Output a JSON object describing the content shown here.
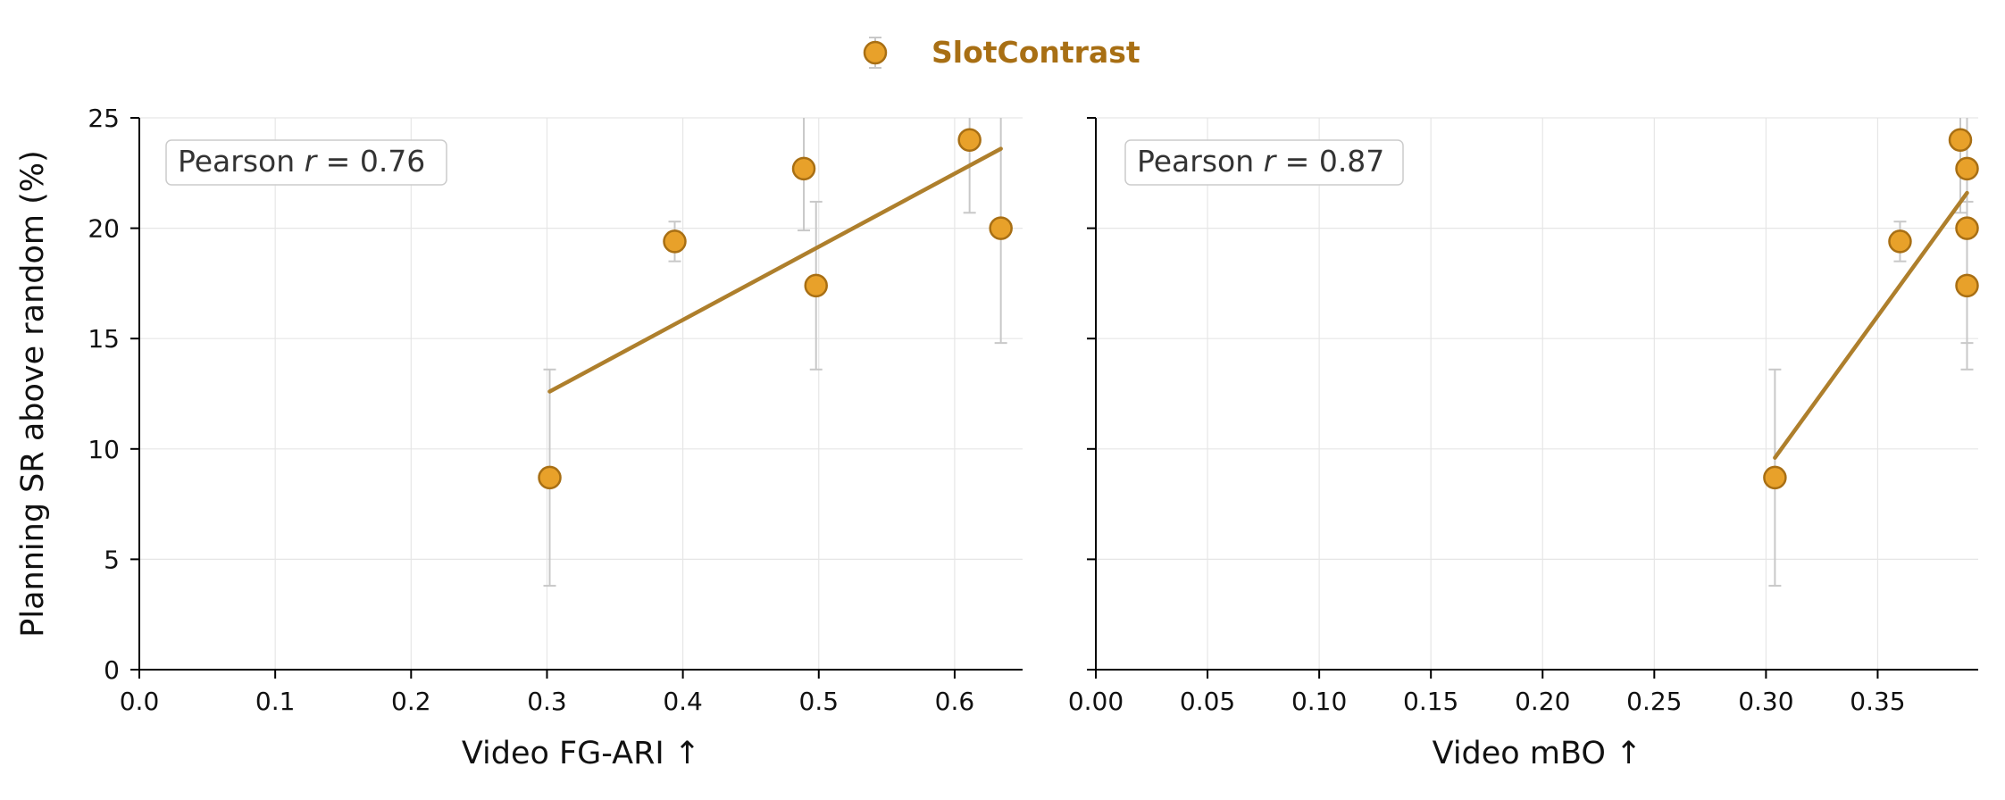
{
  "legend": {
    "label": "SlotContrast",
    "color": "#a86f14",
    "marker_fill": "#e8a12a",
    "marker_edge": "#a86f14"
  },
  "colors": {
    "fit_line": "#ae7f2c",
    "error_bar": "#c8c8c8",
    "grid": "#e6e6e6",
    "axis": "#000000",
    "annotation_text": "#333333",
    "annotation_border": "#cccccc"
  },
  "chart_data": [
    {
      "type": "scatter",
      "xlabel": "Video FG-ARI ↑",
      "ylabel": "Planning SR above random (%)",
      "xlim": [
        0.0,
        0.65
      ],
      "ylim": [
        0,
        25
      ],
      "xticks": [
        "0.0",
        "0.1",
        "0.2",
        "0.3",
        "0.4",
        "0.5",
        "0.6"
      ],
      "xtick_values": [
        0.0,
        0.1,
        0.2,
        0.3,
        0.4,
        0.5,
        0.6
      ],
      "yticks": [
        "0",
        "5",
        "10",
        "15",
        "20",
        "25"
      ],
      "ytick_values": [
        0,
        5,
        10,
        15,
        20,
        25
      ],
      "show_ytick_labels": true,
      "grid": true,
      "annotation": "Pearson r = 0.76",
      "series": [
        {
          "name": "SlotContrast",
          "points": [
            {
              "x": 0.302,
              "y": 8.7,
              "err_low": 3.8,
              "err_high": 13.6
            },
            {
              "x": 0.394,
              "y": 19.4,
              "err_low": 18.5,
              "err_high": 20.3
            },
            {
              "x": 0.489,
              "y": 22.7,
              "err_low": 19.9,
              "err_high": 25.5
            },
            {
              "x": 0.498,
              "y": 17.4,
              "err_low": 13.6,
              "err_high": 21.2
            },
            {
              "x": 0.611,
              "y": 24.0,
              "err_low": 20.7,
              "err_high": 27.3
            },
            {
              "x": 0.634,
              "y": 20.0,
              "err_low": 14.8,
              "err_high": 25.2
            }
          ],
          "fit": {
            "x0": 0.302,
            "y0": 12.6,
            "x1": 0.634,
            "y1": 23.6
          }
        }
      ]
    },
    {
      "type": "scatter",
      "xlabel": "Video mBO ↑",
      "ylabel": "",
      "xlim": [
        0.0,
        0.395
      ],
      "ylim": [
        0,
        25
      ],
      "xticks": [
        "0.00",
        "0.05",
        "0.10",
        "0.15",
        "0.20",
        "0.25",
        "0.30",
        "0.35"
      ],
      "xtick_values": [
        0.0,
        0.05,
        0.1,
        0.15,
        0.2,
        0.25,
        0.3,
        0.35
      ],
      "yticks": [
        "",
        "",
        "",
        "",
        "",
        ""
      ],
      "ytick_values": [
        0,
        5,
        10,
        15,
        20,
        25
      ],
      "show_ytick_labels": false,
      "grid": true,
      "annotation": "Pearson r = 0.87",
      "series": [
        {
          "name": "SlotContrast",
          "points": [
            {
              "x": 0.304,
              "y": 8.7,
              "err_low": 3.8,
              "err_high": 13.6
            },
            {
              "x": 0.36,
              "y": 19.4,
              "err_low": 18.5,
              "err_high": 20.3
            },
            {
              "x": 0.387,
              "y": 24.0,
              "err_low": 20.7,
              "err_high": 27.3
            },
            {
              "x": 0.39,
              "y": 22.7,
              "err_low": 19.9,
              "err_high": 25.5
            },
            {
              "x": 0.39,
              "y": 20.0,
              "err_low": 14.8,
              "err_high": 25.2
            },
            {
              "x": 0.39,
              "y": 17.4,
              "err_low": 13.6,
              "err_high": 21.2
            }
          ],
          "fit": {
            "x0": 0.304,
            "y0": 9.6,
            "x1": 0.39,
            "y1": 21.6
          }
        }
      ]
    }
  ]
}
